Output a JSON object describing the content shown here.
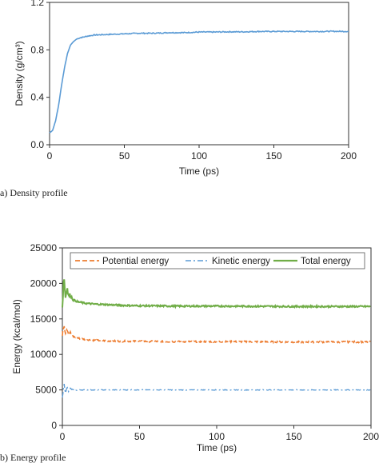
{
  "chart_data": [
    {
      "type": "line",
      "caption": "(a) Density profile",
      "xlabel": "Time (ps)",
      "ylabel": "Density (g/cm³)",
      "xlim": [
        0,
        200
      ],
      "ylim": [
        0,
        1.2
      ],
      "xticks": [
        "0",
        "50",
        "100",
        "150",
        "200"
      ],
      "yticks": [
        "0.0",
        "0.4",
        "0.8",
        "1.2"
      ],
      "grid": false,
      "series": [
        {
          "color": "#5b9bd5",
          "x": [
            0,
            2,
            4,
            6,
            8,
            10,
            12,
            14,
            16,
            18,
            20,
            25,
            30,
            40,
            50,
            60,
            70,
            80,
            90,
            100,
            110,
            120,
            130,
            140,
            150,
            160,
            170,
            180,
            190,
            200
          ],
          "y": [
            0.1,
            0.12,
            0.2,
            0.33,
            0.5,
            0.65,
            0.77,
            0.84,
            0.87,
            0.89,
            0.9,
            0.915,
            0.925,
            0.93,
            0.935,
            0.94,
            0.94,
            0.945,
            0.945,
            0.95,
            0.95,
            0.952,
            0.952,
            0.955,
            0.955,
            0.955,
            0.955,
            0.955,
            0.956,
            0.955
          ]
        }
      ]
    },
    {
      "type": "line",
      "caption": "(b) Energy profile",
      "xlabel": "Time (ps)",
      "ylabel": "Energy (kcal/mol)",
      "xlim": [
        0,
        200
      ],
      "ylim": [
        0,
        25000
      ],
      "xticks": [
        "0",
        "50",
        "100",
        "150",
        "200"
      ],
      "yticks": [
        "0",
        "5000",
        "10000",
        "15000",
        "20000",
        "25000"
      ],
      "grid": false,
      "legend": "top-inside",
      "series": [
        {
          "name": "Potential energy",
          "color": "#ed7d31",
          "style": "dashed",
          "x": [
            0,
            1,
            2,
            3,
            4,
            5,
            7,
            10,
            15,
            20,
            30,
            40,
            50,
            75,
            100,
            125,
            150,
            175,
            200
          ],
          "y": [
            12600,
            14300,
            13200,
            13700,
            13000,
            13100,
            12500,
            12300,
            12100,
            12000,
            11900,
            11850,
            11850,
            11800,
            11800,
            11780,
            11750,
            11750,
            11750
          ]
        },
        {
          "name": "Kinetic energy",
          "color": "#5b9bd5",
          "style": "dashdot",
          "x": [
            0,
            1,
            2,
            3,
            4,
            5,
            8,
            10,
            20,
            50,
            100,
            150,
            200
          ],
          "y": [
            3800,
            6000,
            4500,
            5600,
            4700,
            5200,
            4900,
            5000,
            5000,
            5000,
            5000,
            5000,
            5000
          ]
        },
        {
          "name": "Total energy",
          "color": "#70ad47",
          "style": "solid",
          "x": [
            0,
            1,
            2,
            3,
            4,
            5,
            7,
            10,
            15,
            20,
            30,
            40,
            50,
            75,
            100,
            125,
            150,
            175,
            200
          ],
          "y": [
            16500,
            21200,
            18000,
            19500,
            18200,
            18400,
            17700,
            17400,
            17200,
            17100,
            17000,
            16900,
            16850,
            16800,
            16800,
            16780,
            16750,
            16750,
            16750
          ]
        }
      ]
    }
  ]
}
